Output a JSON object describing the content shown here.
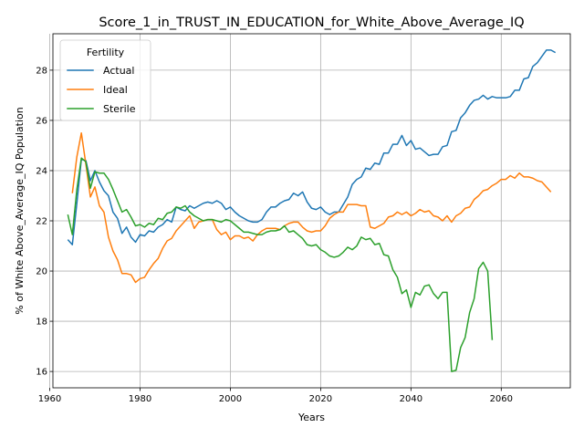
{
  "chart_data": {
    "type": "line",
    "title": "Score_1_in_TRUST_IN_EDUCATION_for_White_Above_Average_IQ",
    "xlabel": "Years",
    "ylabel": "% of White Above_Average_IQ Population",
    "xlim": [
      1960.7,
      2075.3
    ],
    "ylim": [
      15.35,
      29.45
    ],
    "xticks": [
      1960,
      1980,
      2000,
      2020,
      2040,
      2060
    ],
    "yticks": [
      16,
      18,
      20,
      22,
      24,
      26,
      28
    ],
    "grid": true,
    "legend": {
      "title": "Fertility",
      "placement": "top-left"
    },
    "series": [
      {
        "name": "Actual",
        "color": "#1f77b4",
        "points": [
          [
            1964,
            21.25
          ],
          [
            1965,
            21.05
          ],
          [
            1966,
            22.7
          ],
          [
            1967,
            24.45
          ],
          [
            1968,
            24.4
          ],
          [
            1969,
            23.6
          ],
          [
            1970,
            24.0
          ],
          [
            1971,
            23.55
          ],
          [
            1972,
            23.2
          ],
          [
            1973,
            23.0
          ],
          [
            1974,
            22.35
          ],
          [
            1975,
            22.1
          ],
          [
            1976,
            21.5
          ],
          [
            1977,
            21.75
          ],
          [
            1978,
            21.35
          ],
          [
            1979,
            21.15
          ],
          [
            1980,
            21.45
          ],
          [
            1981,
            21.4
          ],
          [
            1982,
            21.6
          ],
          [
            1983,
            21.55
          ],
          [
            1984,
            21.75
          ],
          [
            1985,
            21.85
          ],
          [
            1986,
            22.05
          ],
          [
            1987,
            21.95
          ],
          [
            1988,
            22.55
          ],
          [
            1989,
            22.45
          ],
          [
            1990,
            22.4
          ],
          [
            1991,
            22.6
          ],
          [
            1992,
            22.5
          ],
          [
            1993,
            22.6
          ],
          [
            1994,
            22.7
          ],
          [
            1995,
            22.75
          ],
          [
            1996,
            22.7
          ],
          [
            1997,
            22.8
          ],
          [
            1998,
            22.7
          ],
          [
            1999,
            22.45
          ],
          [
            2000,
            22.55
          ],
          [
            2001,
            22.35
          ],
          [
            2002,
            22.2
          ],
          [
            2003,
            22.1
          ],
          [
            2004,
            22.0
          ],
          [
            2005,
            21.95
          ],
          [
            2006,
            21.95
          ],
          [
            2007,
            22.05
          ],
          [
            2008,
            22.35
          ],
          [
            2009,
            22.55
          ],
          [
            2010,
            22.55
          ],
          [
            2011,
            22.7
          ],
          [
            2012,
            22.8
          ],
          [
            2013,
            22.85
          ],
          [
            2014,
            23.1
          ],
          [
            2015,
            23.0
          ],
          [
            2016,
            23.15
          ],
          [
            2017,
            22.75
          ],
          [
            2018,
            22.5
          ],
          [
            2019,
            22.45
          ],
          [
            2020,
            22.55
          ],
          [
            2021,
            22.35
          ],
          [
            2022,
            22.25
          ],
          [
            2023,
            22.35
          ],
          [
            2024,
            22.35
          ],
          [
            2025,
            22.65
          ],
          [
            2026,
            22.95
          ],
          [
            2027,
            23.45
          ],
          [
            2028,
            23.65
          ],
          [
            2029,
            23.75
          ],
          [
            2030,
            24.1
          ],
          [
            2031,
            24.05
          ],
          [
            2032,
            24.3
          ],
          [
            2033,
            24.25
          ],
          [
            2034,
            24.7
          ],
          [
            2035,
            24.7
          ],
          [
            2036,
            25.05
          ],
          [
            2037,
            25.05
          ],
          [
            2038,
            25.4
          ],
          [
            2039,
            25.0
          ],
          [
            2040,
            25.2
          ],
          [
            2041,
            24.85
          ],
          [
            2042,
            24.9
          ],
          [
            2043,
            24.75
          ],
          [
            2044,
            24.6
          ],
          [
            2045,
            24.65
          ],
          [
            2046,
            24.65
          ],
          [
            2047,
            24.95
          ],
          [
            2048,
            25.0
          ],
          [
            2049,
            25.55
          ],
          [
            2050,
            25.6
          ],
          [
            2051,
            26.1
          ],
          [
            2052,
            26.3
          ],
          [
            2053,
            26.6
          ],
          [
            2054,
            26.8
          ],
          [
            2055,
            26.85
          ],
          [
            2056,
            27.0
          ],
          [
            2057,
            26.85
          ],
          [
            2058,
            26.95
          ],
          [
            2059,
            26.9
          ],
          [
            2060,
            26.9
          ],
          [
            2061,
            26.9
          ],
          [
            2062,
            26.95
          ],
          [
            2063,
            27.2
          ],
          [
            2064,
            27.2
          ],
          [
            2065,
            27.65
          ],
          [
            2066,
            27.7
          ],
          [
            2067,
            28.15
          ],
          [
            2068,
            28.3
          ],
          [
            2069,
            28.55
          ],
          [
            2070,
            28.8
          ],
          [
            2071,
            28.8
          ],
          [
            2072,
            28.7
          ]
        ]
      },
      {
        "name": "Ideal",
        "color": "#ff7f0e",
        "points": [
          [
            1965,
            23.1
          ],
          [
            1966,
            24.55
          ],
          [
            1967,
            25.5
          ],
          [
            1968,
            24.25
          ],
          [
            1969,
            22.95
          ],
          [
            1970,
            23.35
          ],
          [
            1971,
            22.6
          ],
          [
            1972,
            22.35
          ],
          [
            1973,
            21.35
          ],
          [
            1974,
            20.8
          ],
          [
            1975,
            20.45
          ],
          [
            1976,
            19.9
          ],
          [
            1977,
            19.9
          ],
          [
            1978,
            19.85
          ],
          [
            1979,
            19.55
          ],
          [
            1980,
            19.7
          ],
          [
            1981,
            19.75
          ],
          [
            1982,
            20.05
          ],
          [
            1983,
            20.3
          ],
          [
            1984,
            20.5
          ],
          [
            1985,
            20.9
          ],
          [
            1986,
            21.2
          ],
          [
            1987,
            21.3
          ],
          [
            1988,
            21.6
          ],
          [
            1989,
            21.8
          ],
          [
            1990,
            22.0
          ],
          [
            1991,
            22.2
          ],
          [
            1992,
            21.7
          ],
          [
            1993,
            21.95
          ],
          [
            1994,
            22.0
          ],
          [
            1995,
            22.05
          ],
          [
            1996,
            22.05
          ],
          [
            1997,
            21.65
          ],
          [
            1998,
            21.45
          ],
          [
            1999,
            21.55
          ],
          [
            2000,
            21.25
          ],
          [
            2001,
            21.4
          ],
          [
            2002,
            21.4
          ],
          [
            2003,
            21.3
          ],
          [
            2004,
            21.35
          ],
          [
            2005,
            21.2
          ],
          [
            2006,
            21.45
          ],
          [
            2007,
            21.6
          ],
          [
            2008,
            21.7
          ],
          [
            2009,
            21.7
          ],
          [
            2010,
            21.7
          ],
          [
            2011,
            21.65
          ],
          [
            2012,
            21.8
          ],
          [
            2013,
            21.9
          ],
          [
            2014,
            21.95
          ],
          [
            2015,
            21.95
          ],
          [
            2016,
            21.75
          ],
          [
            2017,
            21.6
          ],
          [
            2018,
            21.55
          ],
          [
            2019,
            21.6
          ],
          [
            2020,
            21.6
          ],
          [
            2021,
            21.8
          ],
          [
            2022,
            22.1
          ],
          [
            2023,
            22.25
          ],
          [
            2024,
            22.35
          ],
          [
            2025,
            22.35
          ],
          [
            2026,
            22.65
          ],
          [
            2027,
            22.65
          ],
          [
            2028,
            22.65
          ],
          [
            2029,
            22.6
          ],
          [
            2030,
            22.6
          ],
          [
            2031,
            21.75
          ],
          [
            2032,
            21.7
          ],
          [
            2033,
            21.8
          ],
          [
            2034,
            21.9
          ],
          [
            2035,
            22.15
          ],
          [
            2036,
            22.2
          ],
          [
            2037,
            22.35
          ],
          [
            2038,
            22.25
          ],
          [
            2039,
            22.35
          ],
          [
            2040,
            22.2
          ],
          [
            2041,
            22.3
          ],
          [
            2042,
            22.45
          ],
          [
            2043,
            22.35
          ],
          [
            2044,
            22.4
          ],
          [
            2045,
            22.2
          ],
          [
            2046,
            22.15
          ],
          [
            2047,
            22.0
          ],
          [
            2048,
            22.2
          ],
          [
            2049,
            21.95
          ],
          [
            2050,
            22.2
          ],
          [
            2051,
            22.3
          ],
          [
            2052,
            22.5
          ],
          [
            2053,
            22.55
          ],
          [
            2054,
            22.85
          ],
          [
            2055,
            23.0
          ],
          [
            2056,
            23.2
          ],
          [
            2057,
            23.25
          ],
          [
            2058,
            23.4
          ],
          [
            2059,
            23.5
          ],
          [
            2060,
            23.65
          ],
          [
            2061,
            23.65
          ],
          [
            2062,
            23.8
          ],
          [
            2063,
            23.7
          ],
          [
            2064,
            23.9
          ],
          [
            2065,
            23.75
          ],
          [
            2066,
            23.75
          ],
          [
            2067,
            23.7
          ],
          [
            2068,
            23.6
          ],
          [
            2069,
            23.55
          ],
          [
            2070,
            23.35
          ],
          [
            2071,
            23.15
          ]
        ]
      },
      {
        "name": "Sterile",
        "color": "#2ca02c",
        "points": [
          [
            1964,
            22.25
          ],
          [
            1965,
            21.45
          ],
          [
            1966,
            23.25
          ],
          [
            1967,
            24.5
          ],
          [
            1968,
            24.35
          ],
          [
            1969,
            23.3
          ],
          [
            1970,
            23.95
          ],
          [
            1971,
            23.9
          ],
          [
            1972,
            23.9
          ],
          [
            1973,
            23.65
          ],
          [
            1974,
            23.25
          ],
          [
            1975,
            22.8
          ],
          [
            1976,
            22.35
          ],
          [
            1977,
            22.45
          ],
          [
            1978,
            22.15
          ],
          [
            1979,
            21.8
          ],
          [
            1980,
            21.85
          ],
          [
            1981,
            21.75
          ],
          [
            1982,
            21.9
          ],
          [
            1983,
            21.85
          ],
          [
            1984,
            22.1
          ],
          [
            1985,
            22.05
          ],
          [
            1986,
            22.3
          ],
          [
            1987,
            22.35
          ],
          [
            1988,
            22.55
          ],
          [
            1989,
            22.5
          ],
          [
            1990,
            22.6
          ],
          [
            1991,
            22.35
          ],
          [
            1992,
            22.2
          ],
          [
            1993,
            22.1
          ],
          [
            1994,
            22.0
          ],
          [
            1995,
            22.05
          ],
          [
            1996,
            22.05
          ],
          [
            1997,
            22.0
          ],
          [
            1998,
            21.95
          ],
          [
            1999,
            22.05
          ],
          [
            2000,
            22.0
          ],
          [
            2001,
            21.85
          ],
          [
            2002,
            21.7
          ],
          [
            2003,
            21.55
          ],
          [
            2004,
            21.55
          ],
          [
            2005,
            21.5
          ],
          [
            2006,
            21.45
          ],
          [
            2007,
            21.45
          ],
          [
            2008,
            21.55
          ],
          [
            2009,
            21.6
          ],
          [
            2010,
            21.6
          ],
          [
            2011,
            21.65
          ],
          [
            2012,
            21.8
          ],
          [
            2013,
            21.55
          ],
          [
            2014,
            21.6
          ],
          [
            2015,
            21.45
          ],
          [
            2016,
            21.3
          ],
          [
            2017,
            21.05
          ],
          [
            2018,
            21.0
          ],
          [
            2019,
            21.05
          ],
          [
            2020,
            20.85
          ],
          [
            2021,
            20.75
          ],
          [
            2022,
            20.6
          ],
          [
            2023,
            20.55
          ],
          [
            2024,
            20.6
          ],
          [
            2025,
            20.75
          ],
          [
            2026,
            20.95
          ],
          [
            2027,
            20.85
          ],
          [
            2028,
            21.0
          ],
          [
            2029,
            21.35
          ],
          [
            2030,
            21.25
          ],
          [
            2031,
            21.3
          ],
          [
            2032,
            21.05
          ],
          [
            2033,
            21.1
          ],
          [
            2034,
            20.65
          ],
          [
            2035,
            20.6
          ],
          [
            2036,
            20.05
          ],
          [
            2037,
            19.75
          ],
          [
            2038,
            19.1
          ],
          [
            2039,
            19.25
          ],
          [
            2040,
            18.55
          ],
          [
            2041,
            19.15
          ],
          [
            2042,
            19.05
          ],
          [
            2043,
            19.4
          ],
          [
            2044,
            19.45
          ],
          [
            2045,
            19.1
          ],
          [
            2046,
            18.9
          ],
          [
            2047,
            19.15
          ],
          [
            2048,
            19.15
          ],
          [
            2049,
            16.0
          ],
          [
            2050,
            16.05
          ],
          [
            2051,
            16.95
          ],
          [
            2052,
            17.35
          ],
          [
            2053,
            18.35
          ],
          [
            2054,
            18.9
          ],
          [
            2055,
            20.1
          ],
          [
            2056,
            20.35
          ],
          [
            2057,
            20.0
          ],
          [
            2058,
            17.25
          ]
        ]
      }
    ]
  }
}
